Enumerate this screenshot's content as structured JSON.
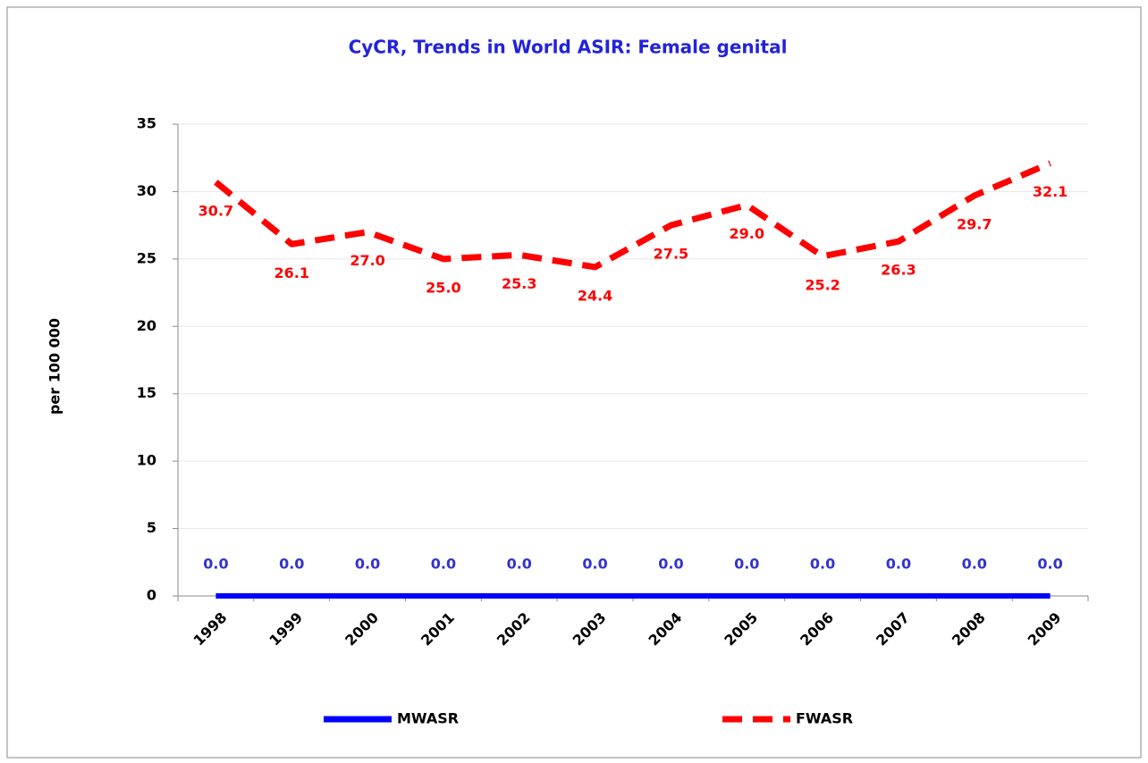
{
  "chart_data": {
    "type": "line",
    "title": "CyCR,  Trends in World ASIR:   Female  genital",
    "y_label": "per 100 000",
    "categories": [
      "1998",
      "1999",
      "2000",
      "2001",
      "2002",
      "2003",
      "2004",
      "2005",
      "2006",
      "2007",
      "2008",
      "2009"
    ],
    "series": [
      {
        "name": "MWASR",
        "color": "#0000ff",
        "dashed": false,
        "label_color": "#3333cc",
        "values": [
          0,
          0,
          0,
          0,
          0,
          0,
          0,
          0,
          0,
          0,
          0,
          0
        ],
        "value_labels": [
          "0.0",
          "0.0",
          "0.0",
          "0.0",
          "0.0",
          "0.0",
          "0.0",
          "0.0",
          "0.0",
          "0.0",
          "0.0",
          "0.0"
        ]
      },
      {
        "name": "FWASR",
        "color": "#ff0000",
        "dashed": true,
        "label_color": "#ff0000",
        "values": [
          30.7,
          26.1,
          27.0,
          25.0,
          25.3,
          24.4,
          27.5,
          29.0,
          25.2,
          26.3,
          29.7,
          32.1
        ],
        "value_labels": [
          "30.7",
          "26.1",
          "27.0",
          "25.0",
          "25.3",
          "24.4",
          "27.5",
          "29.0",
          "25.2",
          "26.3",
          "29.7",
          "32.1"
        ]
      }
    ],
    "ylim": [
      0,
      35
    ],
    "yticks": [
      0,
      5,
      10,
      15,
      20,
      25,
      30,
      35
    ],
    "grid": true,
    "legend": "bottom"
  }
}
